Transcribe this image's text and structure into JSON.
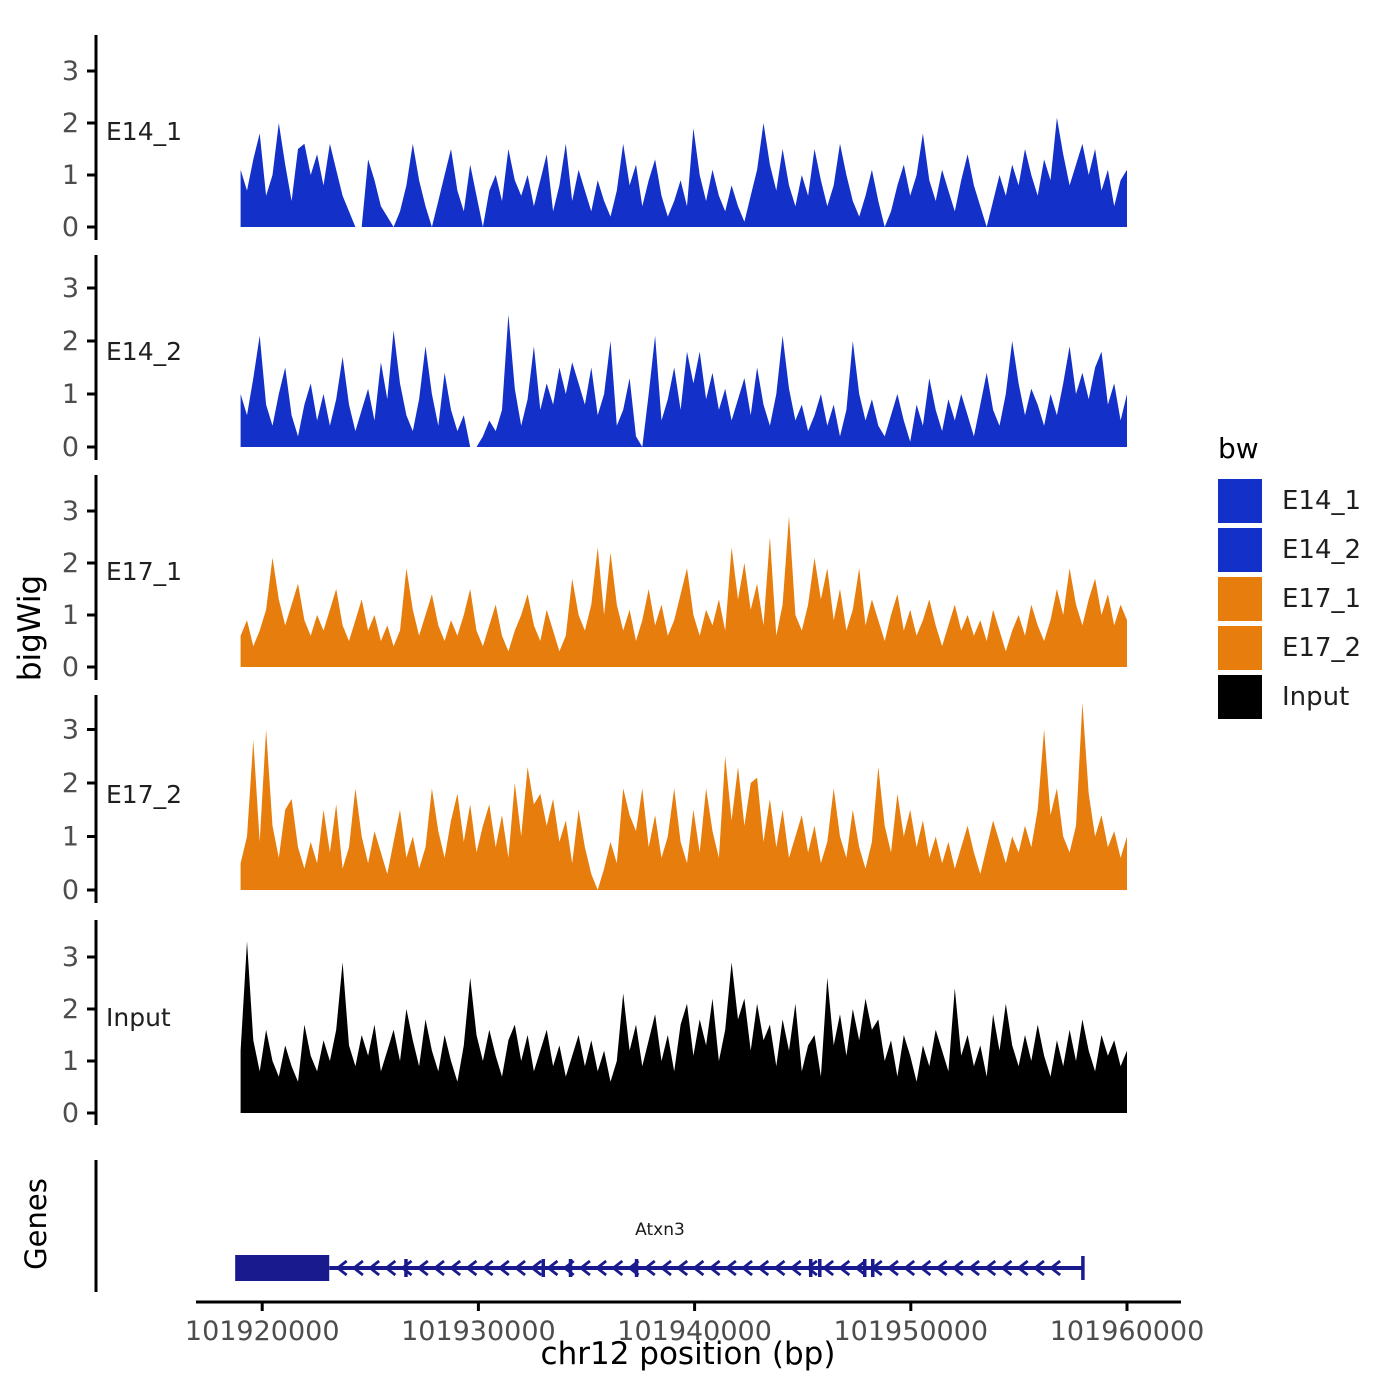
{
  "chart_data": {
    "type": "area",
    "title": "",
    "xlabel": "chr12 position (bp)",
    "ylabel": "bigWig",
    "genes_panel_label": "Genes",
    "x_range": [
      101919000,
      101960000
    ],
    "y_ticks": [
      0,
      1,
      2,
      3
    ],
    "ylim": [
      0,
      3.6
    ],
    "grid": "off",
    "x_ticks": [
      {
        "value": 101920000,
        "label": "101920000"
      },
      {
        "value": 101930000,
        "label": "101930000"
      },
      {
        "value": 101940000,
        "label": "101940000"
      },
      {
        "value": 101950000,
        "label": "101950000"
      },
      {
        "value": 101960000,
        "label": "101960000"
      }
    ],
    "tracks": [
      {
        "name": "E14_1",
        "color": "#1330C9",
        "values": [
          1.1,
          0.7,
          1.3,
          1.8,
          0.6,
          1.0,
          2.0,
          1.2,
          0.5,
          1.5,
          1.6,
          1.0,
          1.4,
          0.8,
          1.6,
          1.1,
          0.6,
          0.3,
          0,
          0,
          1.3,
          0.9,
          0.4,
          0.2,
          0,
          0.3,
          0.8,
          1.6,
          0.9,
          0.4,
          0,
          0.5,
          1.0,
          1.5,
          0.7,
          0.3,
          1.2,
          0.6,
          0,
          0.7,
          1.0,
          0.5,
          1.5,
          0.9,
          0.6,
          1.0,
          0.4,
          0.9,
          1.4,
          0.3,
          0.8,
          1.6,
          0.5,
          1.1,
          0.7,
          0.3,
          0.9,
          0.5,
          0.2,
          0.7,
          1.6,
          0.8,
          1.2,
          0.4,
          0.9,
          1.3,
          0.6,
          0.2,
          0.5,
          0.9,
          0.4,
          1.9,
          1.0,
          0.5,
          1.1,
          0.6,
          0.3,
          0.8,
          0.4,
          0.1,
          0.6,
          1.1,
          2.0,
          1.2,
          0.7,
          1.5,
          0.8,
          0.4,
          1.0,
          0.6,
          1.5,
          0.9,
          0.4,
          0.8,
          1.6,
          1.0,
          0.5,
          0.2,
          0.6,
          1.1,
          0.5,
          0,
          0.3,
          0.8,
          1.2,
          0.6,
          1.0,
          1.8,
          0.9,
          0.5,
          1.1,
          0.7,
          0.3,
          0.9,
          1.4,
          0.8,
          0.4,
          0,
          0.5,
          1.0,
          0.6,
          1.2,
          0.8,
          1.5,
          1.0,
          0.6,
          1.3,
          0.9,
          2.1,
          1.4,
          0.8,
          1.2,
          1.6,
          1.0,
          1.5,
          0.7,
          1.1,
          0.4,
          0.9,
          1.1
        ]
      },
      {
        "name": "E14_2",
        "color": "#1330C9",
        "values": [
          1.0,
          0.6,
          1.3,
          2.1,
          0.8,
          0.4,
          1.0,
          1.5,
          0.6,
          0.2,
          0.8,
          1.2,
          0.5,
          1.0,
          0.4,
          0.9,
          1.7,
          0.8,
          0.3,
          0.7,
          1.1,
          0.5,
          1.6,
          0.9,
          2.2,
          1.2,
          0.6,
          0.3,
          0.9,
          1.9,
          1.0,
          0.4,
          1.4,
          0.7,
          0.3,
          0.6,
          0,
          0,
          0.2,
          0.5,
          0.3,
          0.7,
          2.5,
          1.1,
          0.4,
          0.9,
          1.9,
          0.7,
          1.2,
          0.8,
          1.5,
          1.0,
          1.6,
          1.2,
          0.8,
          1.5,
          0.6,
          1.0,
          2.0,
          0.4,
          0.7,
          1.3,
          0.2,
          0,
          1.0,
          2.1,
          0.5,
          0.9,
          1.5,
          0.7,
          1.8,
          1.2,
          1.8,
          0.9,
          1.4,
          0.7,
          1.1,
          0.5,
          0.9,
          1.3,
          0.6,
          1.5,
          0.8,
          0.4,
          1.0,
          2.1,
          1.1,
          0.5,
          0.8,
          0.3,
          0.6,
          1.0,
          0.4,
          0.8,
          0.2,
          0.7,
          2.0,
          1.0,
          0.5,
          0.9,
          0.4,
          0.2,
          0.6,
          1.0,
          0.5,
          0.1,
          0.8,
          0.4,
          1.3,
          0.7,
          0.3,
          0.9,
          0.5,
          1.0,
          0.6,
          0.2,
          0.8,
          1.4,
          0.7,
          0.4,
          1.0,
          2.0,
          1.2,
          0.6,
          1.1,
          0.8,
          0.4,
          1.0,
          0.6,
          1.2,
          1.9,
          1.0,
          1.4,
          0.9,
          1.5,
          1.8,
          0.8,
          1.2,
          0.5,
          1.0
        ]
      },
      {
        "name": "E17_1",
        "color": "#E67D0D",
        "values": [
          0.6,
          0.9,
          0.4,
          0.7,
          1.1,
          2.1,
          1.3,
          0.8,
          1.2,
          1.6,
          0.9,
          0.6,
          1.0,
          0.7,
          1.1,
          1.5,
          0.8,
          0.5,
          0.9,
          1.3,
          0.7,
          1.0,
          0.5,
          0.8,
          0.4,
          0.7,
          1.9,
          1.1,
          0.6,
          1.0,
          1.4,
          0.8,
          0.5,
          0.9,
          0.6,
          1.0,
          1.5,
          0.7,
          0.4,
          0.8,
          1.2,
          0.6,
          0.3,
          0.7,
          1.0,
          1.4,
          0.8,
          0.5,
          1.1,
          0.7,
          0.3,
          0.6,
          1.7,
          1.0,
          0.7,
          1.2,
          2.3,
          1.0,
          2.2,
          1.2,
          0.7,
          1.1,
          0.5,
          0.9,
          1.5,
          0.8,
          1.2,
          0.6,
          0.9,
          1.4,
          1.9,
          1.0,
          0.6,
          1.1,
          0.8,
          1.3,
          0.7,
          2.3,
          1.3,
          2.0,
          1.1,
          1.6,
          0.8,
          2.5,
          0.6,
          1.2,
          2.9,
          1.0,
          0.7,
          1.2,
          2.1,
          1.3,
          1.9,
          0.9,
          1.5,
          0.7,
          1.1,
          1.9,
          0.8,
          1.3,
          0.9,
          0.5,
          1.0,
          1.4,
          0.7,
          1.1,
          0.6,
          0.9,
          1.3,
          0.8,
          0.4,
          0.8,
          1.2,
          0.7,
          1.0,
          0.6,
          0.9,
          0.5,
          1.1,
          0.7,
          0.3,
          0.7,
          1.0,
          0.6,
          1.2,
          0.8,
          0.5,
          0.9,
          1.5,
          1.0,
          1.9,
          1.2,
          0.8,
          1.3,
          1.7,
          1.0,
          1.4,
          0.8,
          1.2,
          0.9
        ]
      },
      {
        "name": "E17_2",
        "color": "#E67D0D",
        "values": [
          0.5,
          1.0,
          2.8,
          0.9,
          3.0,
          1.2,
          0.6,
          1.5,
          1.7,
          0.8,
          0.4,
          0.9,
          0.5,
          1.5,
          0.7,
          1.6,
          0.4,
          0.8,
          1.9,
          1.0,
          0.5,
          1.1,
          0.7,
          0.3,
          0.9,
          1.5,
          0.6,
          1.0,
          0.4,
          0.8,
          1.9,
          1.1,
          0.6,
          1.3,
          1.8,
          0.9,
          1.6,
          0.7,
          1.2,
          1.6,
          0.8,
          1.4,
          0.6,
          2.0,
          1.0,
          2.3,
          1.6,
          1.8,
          1.2,
          1.7,
          0.9,
          1.3,
          0.5,
          1.5,
          0.8,
          0.3,
          0,
          0.4,
          0.9,
          0.5,
          1.9,
          1.4,
          1.1,
          1.9,
          0.8,
          1.4,
          0.6,
          1.0,
          1.9,
          0.9,
          0.5,
          1.5,
          0.7,
          1.9,
          1.1,
          0.6,
          2.5,
          1.3,
          2.3,
          1.2,
          2.0,
          2.1,
          0.9,
          1.7,
          0.8,
          1.5,
          0.6,
          1.0,
          1.4,
          0.7,
          1.2,
          0.5,
          0.9,
          1.9,
          1.0,
          0.6,
          1.5,
          0.8,
          0.4,
          0.9,
          2.3,
          1.2,
          0.7,
          1.8,
          1.0,
          1.5,
          0.8,
          1.3,
          0.6,
          1.0,
          0.5,
          0.9,
          0.4,
          0.8,
          1.2,
          0.7,
          0.3,
          0.8,
          1.3,
          0.9,
          0.5,
          1.0,
          0.7,
          1.2,
          0.8,
          1.5,
          3.0,
          1.4,
          1.9,
          1.0,
          0.7,
          1.2,
          3.5,
          1.8,
          1.0,
          1.4,
          0.8,
          1.1,
          0.6,
          1.0
        ]
      },
      {
        "name": "Input",
        "color": "#000000",
        "values": [
          1.2,
          3.3,
          1.4,
          0.8,
          1.6,
          1.0,
          0.7,
          1.3,
          0.9,
          0.6,
          1.7,
          1.1,
          0.8,
          1.4,
          1.0,
          1.6,
          2.9,
          1.3,
          0.9,
          1.5,
          1.1,
          1.7,
          0.8,
          1.2,
          1.6,
          1.0,
          2.0,
          1.4,
          0.9,
          1.8,
          1.2,
          0.8,
          1.5,
          1.0,
          0.6,
          1.3,
          2.6,
          1.5,
          1.0,
          1.6,
          1.1,
          0.7,
          1.4,
          1.7,
          1.0,
          1.5,
          0.8,
          1.2,
          1.6,
          0.9,
          1.3,
          0.7,
          1.1,
          1.5,
          0.9,
          1.4,
          0.8,
          1.2,
          0.6,
          1.0,
          2.3,
          1.2,
          1.7,
          0.9,
          1.4,
          1.9,
          1.0,
          1.5,
          0.8,
          1.7,
          2.1,
          1.1,
          1.8,
          1.3,
          2.2,
          1.0,
          1.6,
          2.9,
          1.8,
          2.2,
          1.2,
          2.1,
          1.4,
          1.7,
          0.9,
          1.8,
          1.2,
          2.1,
          0.8,
          1.3,
          1.5,
          0.7,
          2.6,
          1.3,
          1.9,
          1.1,
          2.0,
          1.4,
          2.2,
          1.6,
          1.8,
          1.0,
          1.4,
          0.7,
          1.5,
          1.1,
          0.6,
          1.3,
          0.9,
          1.6,
          1.2,
          0.8,
          2.4,
          1.1,
          1.5,
          0.9,
          1.3,
          0.7,
          1.9,
          1.2,
          2.1,
          1.3,
          0.9,
          1.5,
          1.0,
          1.7,
          1.1,
          0.7,
          1.4,
          0.9,
          1.6,
          1.0,
          1.8,
          1.2,
          0.8,
          1.5,
          1.1,
          1.4,
          0.9,
          1.2
        ]
      }
    ],
    "genes_panel": {
      "label": "Genes",
      "gene": {
        "name": "Atxn3",
        "strand": "-",
        "color": "#1A1A8F",
        "start": 101918750,
        "end": 101957960,
        "utr_box": {
          "start": 101918750,
          "end": 101923100
        },
        "exons": [
          101926650,
          101933000,
          101934260,
          101937315,
          101945370,
          101945790,
          101947870,
          101948240
        ]
      }
    },
    "legend": {
      "title": "bw",
      "position": "right",
      "entries": [
        {
          "label": "E14_1",
          "color": "#1330C9"
        },
        {
          "label": "E14_2",
          "color": "#1330C9"
        },
        {
          "label": "E17_1",
          "color": "#E67D0D"
        },
        {
          "label": "E17_2",
          "color": "#E67D0D"
        },
        {
          "label": "Input",
          "color": "#000000"
        }
      ]
    },
    "colors": {
      "axis": "#000000",
      "tick_label": "#4d4d4d",
      "background": "#ffffff"
    }
  }
}
